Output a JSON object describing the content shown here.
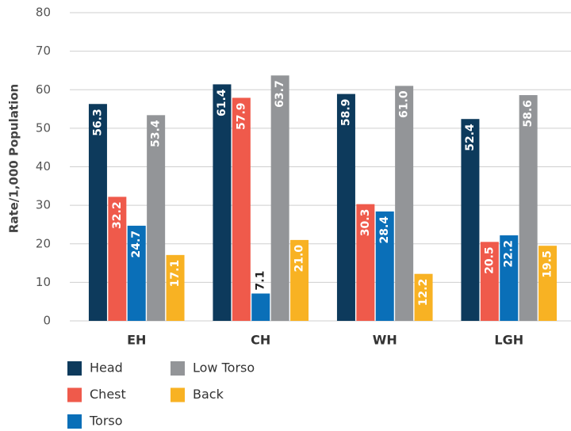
{
  "chart_data": {
    "type": "bar",
    "y_label": "Rate/1,000 Population",
    "categories": [
      "EH",
      "CH",
      "WH",
      "LGH"
    ],
    "series": [
      {
        "name": "Head",
        "color": "#0d3a5c",
        "values": [
          56.3,
          61.4,
          58.9,
          52.4
        ],
        "value_labels": [
          "56.3",
          "61.4",
          "58.9",
          "52.4"
        ]
      },
      {
        "name": "Chest",
        "color": "#ef5a4b",
        "values": [
          32.2,
          57.9,
          30.3,
          20.5
        ],
        "value_labels": [
          "32.2",
          "57.9",
          "30.3",
          "20.5"
        ]
      },
      {
        "name": "Torso",
        "color": "#0a6fb8",
        "values": [
          24.7,
          7.1,
          28.4,
          22.2
        ],
        "value_labels": [
          "24.7",
          "7.1",
          "28.4",
          "22.2"
        ]
      },
      {
        "name": "Low Torso",
        "color": "#939598",
        "values": [
          53.4,
          63.7,
          61.0,
          58.6
        ],
        "value_labels": [
          "53.4",
          "63.7",
          "61.0",
          "58.6"
        ]
      },
      {
        "name": "Back",
        "color": "#f8b223",
        "values": [
          17.1,
          21.0,
          12.2,
          19.5
        ],
        "value_labels": [
          "17.1",
          "21.0",
          "12.2",
          "19.5"
        ]
      }
    ],
    "ylim": [
      0,
      80
    ],
    "yticks": [
      0,
      10,
      20,
      30,
      40,
      50,
      60,
      70,
      80
    ],
    "grid": true
  }
}
